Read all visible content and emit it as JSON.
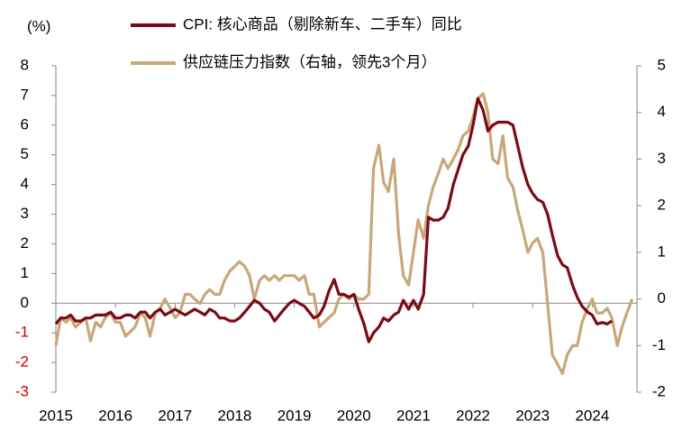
{
  "chart_data": {
    "type": "line",
    "y_label": "(%)",
    "x": [
      2015,
      2015.08,
      2015.17,
      2015.25,
      2015.33,
      2015.42,
      2015.5,
      2015.58,
      2015.67,
      2015.75,
      2015.83,
      2015.92,
      2016,
      2016.08,
      2016.17,
      2016.25,
      2016.33,
      2016.42,
      2016.5,
      2016.58,
      2016.67,
      2016.75,
      2016.83,
      2016.92,
      2017,
      2017.08,
      2017.17,
      2017.25,
      2017.33,
      2017.42,
      2017.5,
      2017.58,
      2017.67,
      2017.75,
      2017.83,
      2017.92,
      2018,
      2018.08,
      2018.17,
      2018.25,
      2018.33,
      2018.42,
      2018.5,
      2018.58,
      2018.67,
      2018.75,
      2018.83,
      2018.92,
      2019,
      2019.08,
      2019.17,
      2019.25,
      2019.33,
      2019.42,
      2019.5,
      2019.58,
      2019.67,
      2019.75,
      2019.83,
      2019.92,
      2020,
      2020.08,
      2020.17,
      2020.25,
      2020.33,
      2020.42,
      2020.5,
      2020.58,
      2020.67,
      2020.75,
      2020.83,
      2020.92,
      2021,
      2021.08,
      2021.17,
      2021.25,
      2021.33,
      2021.42,
      2021.5,
      2021.58,
      2021.67,
      2021.75,
      2021.83,
      2021.92,
      2022,
      2022.08,
      2022.17,
      2022.25,
      2022.33,
      2022.42,
      2022.5,
      2022.58,
      2022.67,
      2022.75,
      2022.83,
      2022.92,
      2023,
      2023.08,
      2023.17,
      2023.25,
      2023.33,
      2023.42,
      2023.5,
      2023.58,
      2023.67,
      2023.75,
      2023.83,
      2023.92,
      2024,
      2024.08,
      2024.17,
      2024.25,
      2024.33,
      2024.42,
      2024.5,
      2024.58,
      2024.67
    ],
    "xlim": [
      2015,
      2024.75
    ],
    "xticks": [
      2015,
      2016,
      2017,
      2018,
      2019,
      2020,
      2021,
      2022,
      2023,
      2024
    ],
    "ylim": [
      -3,
      8
    ],
    "yticks": [
      -3,
      -2,
      -1,
      0,
      1,
      2,
      3,
      4,
      5,
      6,
      7,
      8
    ],
    "negative_tick_color": "#d00000",
    "y2lim": [
      -2,
      5
    ],
    "y2ticks": [
      -2,
      -1,
      0,
      1,
      2,
      3,
      4,
      5
    ],
    "series": [
      {
        "name": "CPI: 核心商品（剔除新车、二手车）同比",
        "color": "#7a0a14",
        "values": [
          -0.7,
          -0.5,
          -0.5,
          -0.4,
          -0.6,
          -0.6,
          -0.5,
          -0.5,
          -0.4,
          -0.4,
          -0.4,
          -0.3,
          -0.5,
          -0.5,
          -0.4,
          -0.4,
          -0.5,
          -0.3,
          -0.3,
          -0.5,
          -0.3,
          -0.2,
          -0.4,
          -0.3,
          -0.2,
          -0.3,
          -0.4,
          -0.3,
          -0.2,
          -0.3,
          -0.4,
          -0.2,
          -0.3,
          -0.5,
          -0.5,
          -0.6,
          -0.6,
          -0.5,
          -0.3,
          -0.1,
          0.1,
          0.0,
          -0.2,
          -0.3,
          -0.6,
          -0.4,
          -0.2,
          0.0,
          0.1,
          0.0,
          -0.1,
          -0.3,
          -0.5,
          -0.4,
          -0.1,
          0.4,
          0.8,
          0.3,
          0.3,
          0.2,
          0.3,
          -0.2,
          -0.7,
          -1.3,
          -1.0,
          -0.8,
          -0.5,
          -0.6,
          -0.4,
          -0.3,
          0.1,
          -0.2,
          0.1,
          -0.2,
          0.3,
          2.9,
          2.8,
          2.8,
          2.9,
          3.2,
          4.0,
          4.5,
          5.0,
          5.3,
          6.0,
          6.9,
          6.5,
          5.8,
          6.0,
          6.1,
          6.1,
          6.1,
          6.0,
          5.3,
          4.6,
          4.0,
          3.7,
          3.5,
          3.4,
          3.0,
          2.3,
          1.6,
          1.3,
          1.2,
          0.6,
          0.2,
          -0.1,
          -0.3,
          -0.4,
          -0.7,
          -0.65,
          -0.7,
          -0.6,
          null,
          null,
          null,
          null
        ]
      },
      {
        "name": "供应链压力指数（右轴，领先3个月）",
        "color": "#c8a878",
        "axis": "y2",
        "values": [
          -1.0,
          -0.4,
          -0.5,
          -0.4,
          -0.6,
          -0.5,
          -0.4,
          -0.9,
          -0.5,
          -0.6,
          -0.4,
          -0.3,
          -0.5,
          -0.5,
          -0.8,
          -0.7,
          -0.6,
          -0.3,
          -0.4,
          -0.8,
          -0.3,
          -0.2,
          0.0,
          -0.2,
          -0.4,
          -0.3,
          0.1,
          0.1,
          0.0,
          -0.1,
          0.1,
          0.2,
          0.1,
          0.1,
          0.4,
          0.6,
          0.7,
          0.8,
          0.7,
          0.5,
          0.0,
          0.4,
          0.5,
          0.4,
          0.5,
          0.4,
          0.5,
          0.5,
          0.5,
          0.4,
          0.5,
          0.1,
          0.1,
          -0.6,
          -0.5,
          -0.4,
          -0.3,
          0.0,
          0.1,
          0.0,
          0.1,
          0.0,
          0.0,
          0.1,
          2.8,
          3.3,
          2.5,
          2.3,
          3.0,
          1.4,
          0.5,
          0.3,
          1.0,
          1.7,
          1.3,
          2.0,
          2.4,
          2.7,
          3.0,
          2.8,
          3.0,
          3.2,
          3.5,
          3.6,
          3.9,
          4.3,
          4.4,
          4.0,
          3.0,
          2.9,
          3.5,
          2.6,
          2.4,
          1.9,
          1.5,
          1.0,
          1.2,
          1.3,
          1.0,
          -0.1,
          -1.2,
          -1.4,
          -1.6,
          -1.2,
          -1.0,
          -1.0,
          -0.5,
          -0.2,
          0.0,
          -0.3,
          -0.3,
          -0.2,
          -0.4,
          -1.0,
          -0.6,
          -0.3,
          0.0
        ]
      }
    ]
  }
}
